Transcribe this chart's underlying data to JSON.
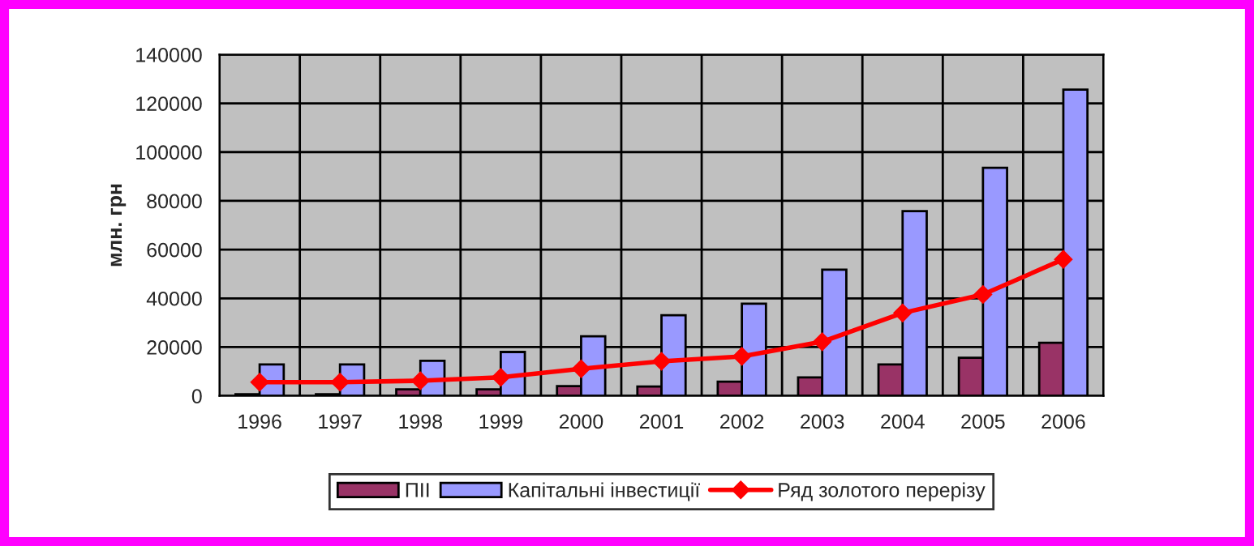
{
  "chart_data": {
    "type": "bar",
    "ylabel": "млн. грн",
    "categories": [
      "1996",
      "1997",
      "1998",
      "1999",
      "2000",
      "2001",
      "2002",
      "2003",
      "2004",
      "2005",
      "2006"
    ],
    "series": [
      {
        "name": "ПІІ",
        "color": "#993366",
        "values": [
          700,
          700,
          2700,
          2700,
          4000,
          3800,
          5800,
          7600,
          12900,
          15600,
          21800
        ]
      },
      {
        "name": "Капітальні інвестиції",
        "color": "#9999ff",
        "values": [
          12900,
          12900,
          14400,
          18000,
          24400,
          33100,
          37800,
          51800,
          75800,
          93600,
          125600
        ]
      },
      {
        "name": "Ряд золотого перерізу",
        "type": "line",
        "color": "#ff0000",
        "marker": "diamond",
        "values": [
          5600,
          5600,
          6200,
          7600,
          11100,
          14200,
          16200,
          22200,
          34000,
          41600,
          56000
        ]
      }
    ],
    "ylim": [
      0,
      140000
    ],
    "yticks": [
      0,
      20000,
      40000,
      60000,
      80000,
      100000,
      120000,
      140000
    ],
    "grid": true,
    "legend": "bottom"
  }
}
